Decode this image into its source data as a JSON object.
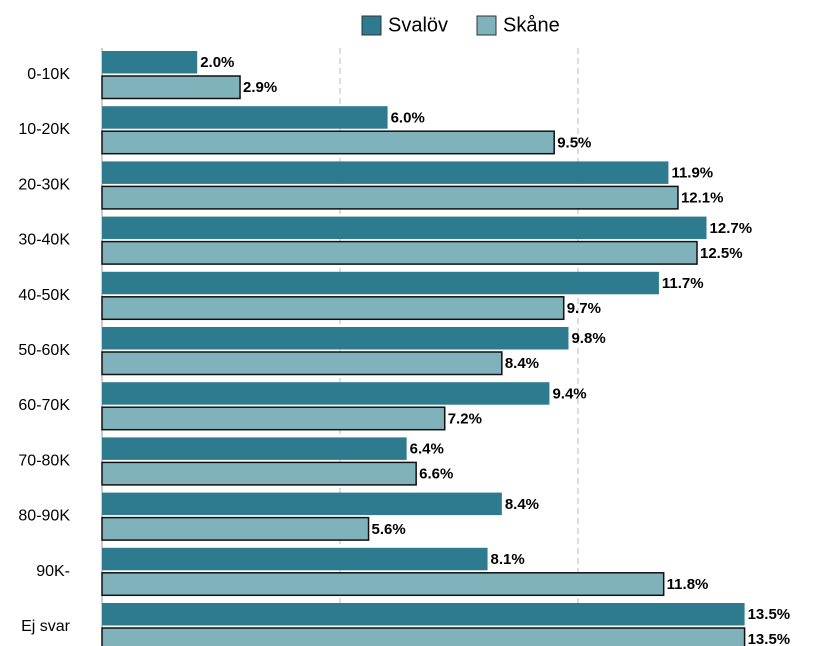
{
  "chart_data": {
    "type": "hbar",
    "categories": [
      "0-10K",
      "10-20K",
      "20-30K",
      "30-40K",
      "40-50K",
      "50-60K",
      "60-70K",
      "70-80K",
      "80-90K",
      "90K-",
      "Ej svar"
    ],
    "series": [
      {
        "name": "Svalöv",
        "color": "#2e7b8f",
        "values": [
          2.0,
          6.0,
          11.9,
          12.7,
          11.7,
          9.8,
          9.4,
          6.4,
          8.4,
          8.1,
          13.5
        ],
        "value_labels": [
          "2.0%",
          "6.0%",
          "11.9%",
          "12.7%",
          "11.7%",
          "9.8%",
          "9.4%",
          "6.4%",
          "8.4%",
          "8.1%",
          "13.5%"
        ]
      },
      {
        "name": "Skåne",
        "color": "#7fb2ba",
        "values": [
          2.9,
          9.5,
          12.1,
          12.5,
          9.7,
          8.4,
          7.2,
          6.6,
          5.6,
          11.8,
          13.5
        ],
        "value_labels": [
          "2.9%",
          "9.5%",
          "12.1%",
          "12.5%",
          "9.7%",
          "8.4%",
          "7.2%",
          "6.6%",
          "5.6%",
          "11.8%",
          "13.5%"
        ]
      }
    ],
    "xlim": [
      0,
      15
    ],
    "xticks": [
      5,
      10
    ],
    "grid": true,
    "legend": "top"
  }
}
